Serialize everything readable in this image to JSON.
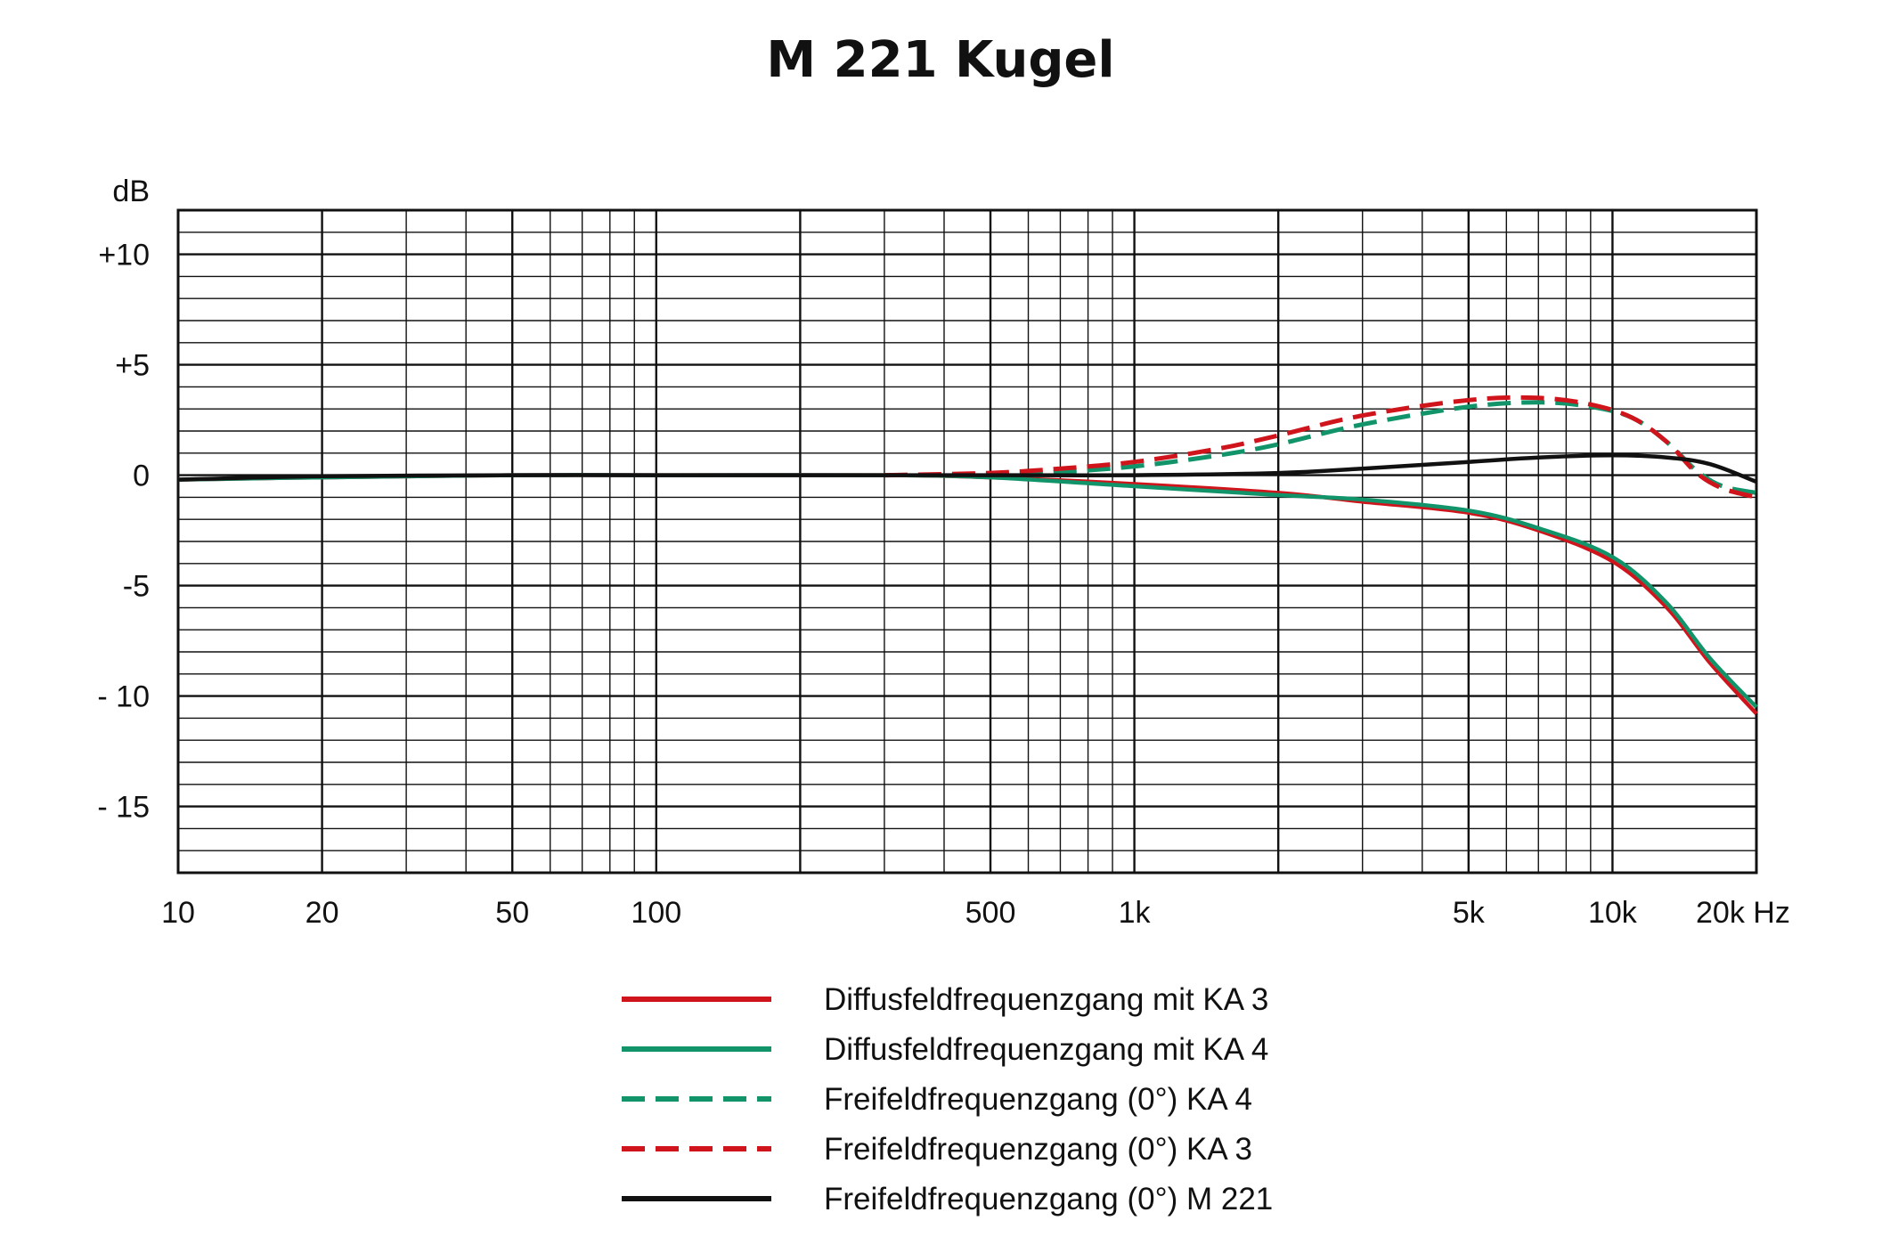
{
  "chart_data": {
    "type": "line",
    "title": "M 221 Kugel",
    "y_unit": "dB",
    "x_scale": "log",
    "xlim": [
      10,
      20000
    ],
    "ylim": [
      -18,
      12
    ],
    "x_ticks": [
      {
        "value": 10,
        "label": "10"
      },
      {
        "value": 20,
        "label": "20"
      },
      {
        "value": 50,
        "label": "50"
      },
      {
        "value": 100,
        "label": "100"
      },
      {
        "value": 500,
        "label": "500"
      },
      {
        "value": 1000,
        "label": "1k"
      },
      {
        "value": 5000,
        "label": "5k"
      },
      {
        "value": 10000,
        "label": "10k"
      },
      {
        "value": 20000,
        "label": "20k Hz"
      }
    ],
    "y_ticks": [
      {
        "value": 10,
        "label": "+10"
      },
      {
        "value": 5,
        "label": "+5"
      },
      {
        "value": 0,
        "label": "0"
      },
      {
        "value": -5,
        "label": "-5"
      },
      {
        "value": -10,
        "label": "- 10"
      },
      {
        "value": -15,
        "label": "- 15"
      }
    ],
    "grid": true,
    "legend_position": "bottom",
    "series": [
      {
        "name": "Diffusfeldfrequenzgang mit KA 3",
        "color": "#d0141c",
        "style": "solid",
        "points": [
          [
            10,
            -0.2
          ],
          [
            20,
            -0.1
          ],
          [
            50,
            0
          ],
          [
            100,
            0
          ],
          [
            300,
            0
          ],
          [
            500,
            -0.1
          ],
          [
            1000,
            -0.4
          ],
          [
            2000,
            -0.8
          ],
          [
            3000,
            -1.2
          ],
          [
            5000,
            -1.7
          ],
          [
            7000,
            -2.5
          ],
          [
            10000,
            -3.9
          ],
          [
            13000,
            -6.0
          ],
          [
            16000,
            -8.5
          ],
          [
            20000,
            -10.8
          ]
        ]
      },
      {
        "name": "Diffusfeldfrequenzgang mit KA 4",
        "color": "#12946a",
        "style": "solid",
        "points": [
          [
            10,
            -0.2
          ],
          [
            20,
            -0.1
          ],
          [
            50,
            0
          ],
          [
            100,
            0
          ],
          [
            300,
            0
          ],
          [
            500,
            -0.1
          ],
          [
            1000,
            -0.5
          ],
          [
            2000,
            -0.9
          ],
          [
            3000,
            -1.1
          ],
          [
            5000,
            -1.6
          ],
          [
            7000,
            -2.4
          ],
          [
            10000,
            -3.7
          ],
          [
            13000,
            -5.8
          ],
          [
            16000,
            -8.3
          ],
          [
            20000,
            -10.5
          ]
        ]
      },
      {
        "name": "Freifeldfrequenzgang (0°) KA 4",
        "color": "#12946a",
        "style": "dashed",
        "points": [
          [
            300,
            0
          ],
          [
            500,
            0.05
          ],
          [
            700,
            0.15
          ],
          [
            1000,
            0.4
          ],
          [
            1500,
            0.9
          ],
          [
            2000,
            1.4
          ],
          [
            3000,
            2.3
          ],
          [
            5000,
            3.1
          ],
          [
            7000,
            3.3
          ],
          [
            9000,
            3.1
          ],
          [
            11000,
            2.6
          ],
          [
            13000,
            1.5
          ],
          [
            15000,
            0.2
          ],
          [
            17000,
            -0.5
          ],
          [
            20000,
            -0.8
          ]
        ]
      },
      {
        "name": "Freifeldfrequenzgang (0°) KA 3",
        "color": "#d0141c",
        "style": "dashed",
        "points": [
          [
            300,
            0
          ],
          [
            500,
            0.1
          ],
          [
            700,
            0.3
          ],
          [
            1000,
            0.6
          ],
          [
            1500,
            1.2
          ],
          [
            2000,
            1.8
          ],
          [
            3000,
            2.7
          ],
          [
            5000,
            3.4
          ],
          [
            7000,
            3.5
          ],
          [
            9000,
            3.2
          ],
          [
            11000,
            2.6
          ],
          [
            13000,
            1.5
          ],
          [
            15000,
            0.1
          ],
          [
            17000,
            -0.6
          ],
          [
            20000,
            -1.0
          ]
        ]
      },
      {
        "name": "Freifeldfrequenzgang (0°) M 221",
        "color": "#111111",
        "style": "solid",
        "points": [
          [
            10,
            -0.2
          ],
          [
            20,
            -0.05
          ],
          [
            50,
            0
          ],
          [
            100,
            0
          ],
          [
            300,
            0
          ],
          [
            500,
            0
          ],
          [
            1000,
            0
          ],
          [
            2000,
            0.1
          ],
          [
            3000,
            0.3
          ],
          [
            5000,
            0.6
          ],
          [
            7000,
            0.8
          ],
          [
            10000,
            0.9
          ],
          [
            13000,
            0.8
          ],
          [
            16000,
            0.5
          ],
          [
            20000,
            -0.3
          ]
        ]
      }
    ]
  }
}
